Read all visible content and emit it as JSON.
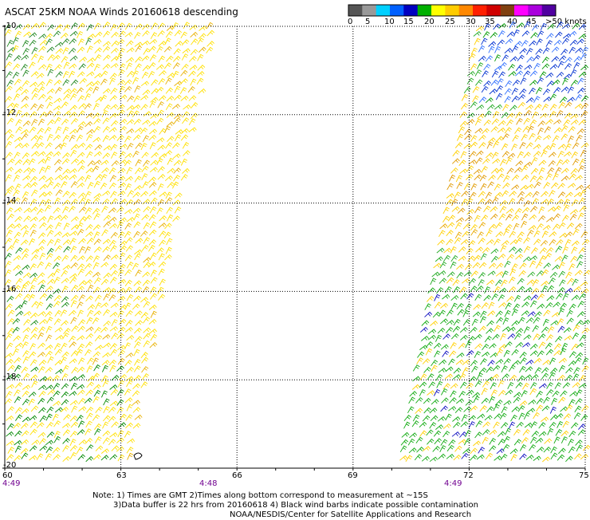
{
  "title": "ASCAT 25KM NOAA Winds 20160618 descending",
  "colorbar": {
    "colors": [
      "#555555",
      "#999999",
      "#00d0ff",
      "#0060ff",
      "#0000c0",
      "#00b000",
      "#ffff00",
      "#ffcc00",
      "#ff8800",
      "#ff2000",
      "#d00000",
      "#804010",
      "#ff00ff",
      "#aa00dd",
      "#5000a0"
    ],
    "labels": [
      "0",
      "5",
      "10",
      "15",
      "20",
      "25",
      "30",
      "35",
      "40",
      "45",
      ">50 knots"
    ]
  },
  "map": {
    "lon_range": [
      60,
      75
    ],
    "lat_range": [
      -20,
      -10
    ],
    "lon_ticks": [
      "60",
      "63",
      "66",
      "69",
      "72",
      "75"
    ],
    "lat_ticks": [
      "-10",
      "-12",
      "-14",
      "-16",
      "-18",
      "-20"
    ],
    "swaths": [
      {
        "name": "west-swath",
        "time": "4:49",
        "dominant": "yellow"
      },
      {
        "name": "center",
        "time": "4:48"
      },
      {
        "name": "east-swath",
        "time": "4:49",
        "dominant": "yellow-green-blue"
      }
    ]
  },
  "notes": {
    "line1": "Note: 1) Times are GMT 2)Times along bottom correspond to measurement at ~15S",
    "line2": "3)Data buffer is 22 hrs from 20160618 4) Black wind barbs indicate possible contamination",
    "line3": "NOAA/NESDIS/Center for Satellite Applications and Research"
  }
}
